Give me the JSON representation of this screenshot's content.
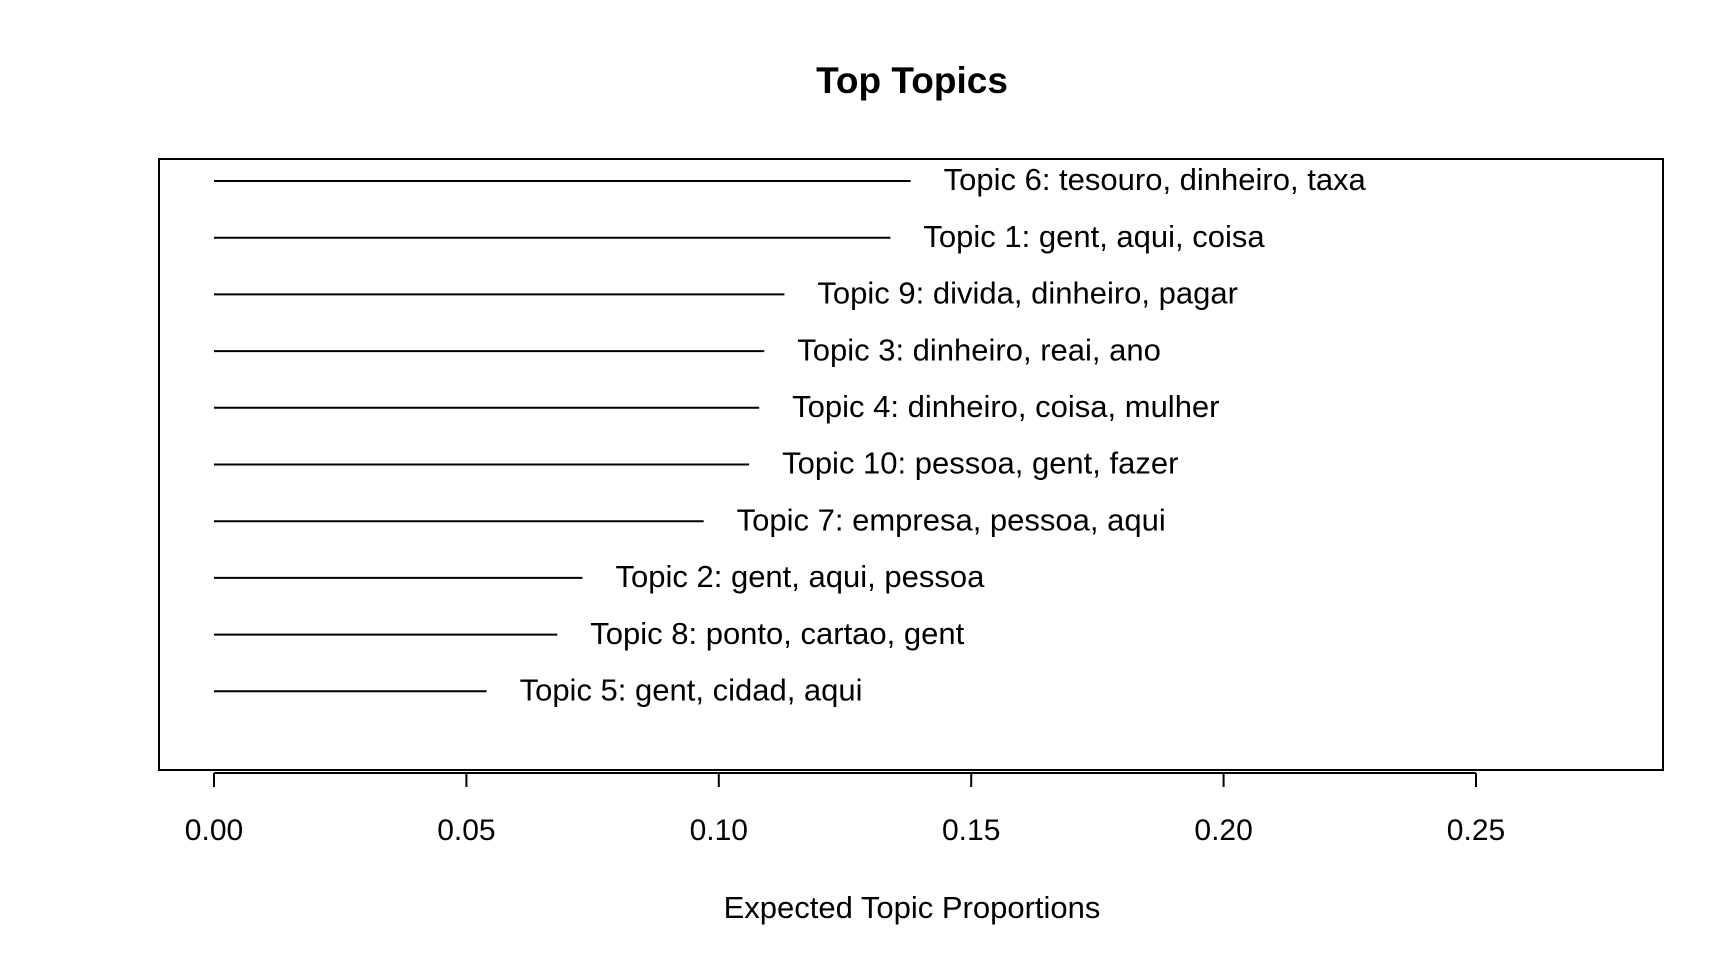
{
  "chart_data": {
    "type": "bar",
    "orientation": "horizontal",
    "title": "Top Topics",
    "xlabel": "Expected Topic Proportions",
    "ylabel": "",
    "xlim": [
      0,
      0.285
    ],
    "xticks": [
      0.0,
      0.05,
      0.1,
      0.15,
      0.2,
      0.25
    ],
    "xtick_labels": [
      "0.00",
      "0.05",
      "0.10",
      "0.15",
      "0.20",
      "0.25"
    ],
    "grid": false,
    "categories": [
      "Topic 6: tesouro, dinheiro, taxa",
      "Topic 1: gent, aqui, coisa",
      "Topic 9: divida, dinheiro, pagar",
      "Topic 3: dinheiro, reai, ano",
      "Topic 4: dinheiro, coisa, mulher",
      "Topic 10: pessoa, gent, fazer",
      "Topic 7: empresa, pessoa, aqui",
      "Topic 2: gent, aqui, pessoa",
      "Topic 8: ponto, cartao, gent",
      "Topic 5: gent, cidad, aqui"
    ],
    "values": [
      0.138,
      0.134,
      0.113,
      0.109,
      0.108,
      0.106,
      0.097,
      0.073,
      0.068,
      0.054
    ]
  }
}
